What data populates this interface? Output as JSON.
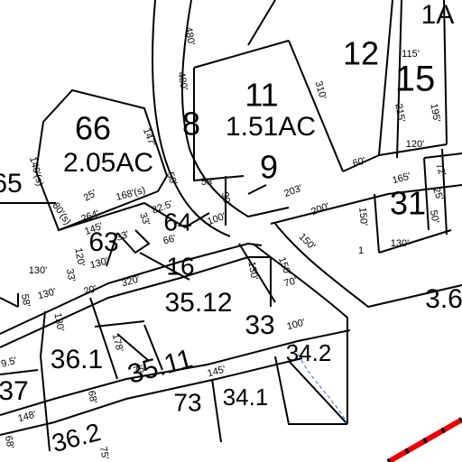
{
  "parcels": [
    {
      "label": "1A"
    },
    {
      "label": "12"
    },
    {
      "label": "15"
    },
    {
      "label": "11"
    },
    {
      "label": "1.51AC"
    },
    {
      "label": "8"
    },
    {
      "label": "66"
    },
    {
      "label": "2.05AC"
    },
    {
      "label": "65"
    },
    {
      "label": "9"
    },
    {
      "label": "31"
    },
    {
      "label": "64"
    },
    {
      "label": "63"
    },
    {
      "label": "16"
    },
    {
      "label": "35.12"
    },
    {
      "label": "33"
    },
    {
      "label": "3.6"
    },
    {
      "label": "34.2"
    },
    {
      "label": "36.1"
    },
    {
      "label": "37"
    },
    {
      "label": "35.11"
    },
    {
      "label": "73"
    },
    {
      "label": "34.1"
    },
    {
      "label": "36.2"
    }
  ],
  "dimensions": [
    "480'",
    "480'",
    "310'",
    "115'",
    "215'",
    "195'",
    "120'",
    "60'",
    "147'",
    "140'(s)",
    "80'(s)",
    "25'",
    "264'",
    "168'(s)",
    "50'",
    "53'",
    "90'",
    "203'",
    "165'",
    "72'",
    "25'",
    "50'",
    "200'",
    "150'",
    "82.5'",
    "145'",
    "33'",
    "66'",
    "100'",
    "33'",
    "130'",
    "120'",
    "130'",
    "58'",
    "33'",
    "130'",
    "20'",
    "320'",
    "150'",
    "70'",
    "130'",
    "100'",
    "150'",
    "130'",
    "1",
    "9.5'",
    "130'",
    "178'",
    "75'",
    "145'",
    "68'",
    "148'",
    "68'",
    "75'"
  ]
}
